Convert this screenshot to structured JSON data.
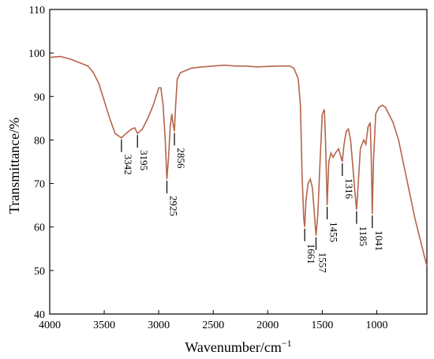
{
  "chart_data": {
    "type": "line",
    "title": "",
    "xlabel": "Wavenumber/cm",
    "xlabel_sup": "−1",
    "ylabel": "Transmittance/%",
    "xlim": [
      4000,
      540
    ],
    "ylim": [
      40,
      110
    ],
    "x_reversed": true,
    "x_ticks": [
      4000,
      3500,
      3000,
      2500,
      2000,
      1500,
      1000
    ],
    "y_ticks": [
      40,
      50,
      60,
      70,
      80,
      90,
      100,
      110
    ],
    "grid": false,
    "line_color": "#b5654a",
    "series": [
      {
        "x": [
          4000,
          3900,
          3800,
          3750,
          3700,
          3650,
          3600,
          3550,
          3500,
          3450,
          3400,
          3360,
          3342,
          3300,
          3250,
          3220,
          3195,
          3150,
          3100,
          3050,
          3000,
          2980,
          2960,
          2940,
          2925,
          2910,
          2895,
          2880,
          2870,
          2856,
          2845,
          2830,
          2800,
          2750,
          2700,
          2600,
          2500,
          2400,
          2300,
          2200,
          2100,
          2000,
          1900,
          1800,
          1760,
          1720,
          1700,
          1685,
          1670,
          1661,
          1650,
          1630,
          1610,
          1590,
          1575,
          1557,
          1540,
          1520,
          1500,
          1480,
          1470,
          1455,
          1440,
          1420,
          1400,
          1380,
          1350,
          1316,
          1300,
          1280,
          1260,
          1240,
          1220,
          1200,
          1185,
          1170,
          1150,
          1120,
          1100,
          1080,
          1060,
          1050,
          1041,
          1030,
          1010,
          980,
          950,
          920,
          900,
          850,
          800,
          750,
          700,
          650,
          600,
          560,
          540
        ],
        "y": [
          99,
          99.2,
          98.5,
          98,
          97.5,
          97,
          95.5,
          93,
          89,
          85,
          81.5,
          80.8,
          80.5,
          81.5,
          82.5,
          82.8,
          81.5,
          82.5,
          85,
          88,
          92,
          92,
          88,
          80,
          71,
          76,
          83,
          86,
          84,
          82,
          88,
          94,
          95.5,
          96,
          96.5,
          96.8,
          97,
          97.2,
          97,
          97,
          96.8,
          96.9,
          97,
          97,
          96.5,
          94,
          88,
          72,
          62,
          60,
          66,
          70,
          71,
          69,
          64,
          58,
          63,
          75,
          86,
          87,
          80,
          65,
          75,
          77,
          76,
          77,
          78,
          75,
          79,
          82,
          82.5,
          80,
          74,
          68,
          64,
          70,
          78,
          80,
          79,
          83,
          84,
          76,
          63,
          75,
          86,
          87.5,
          88,
          87.5,
          86.5,
          84,
          80,
          74,
          68,
          62,
          57,
          53,
          51
        ]
      }
    ],
    "annotations": [
      {
        "label": "3342",
        "x": 3342
      },
      {
        "label": "3195",
        "x": 3195
      },
      {
        "label": "2925",
        "x": 2925
      },
      {
        "label": "2856",
        "x": 2856
      },
      {
        "label": "1661",
        "x": 1661
      },
      {
        "label": "1557",
        "x": 1557
      },
      {
        "label": "1455",
        "x": 1455
      },
      {
        "label": "1316",
        "x": 1316
      },
      {
        "label": "1185",
        "x": 1185
      },
      {
        "label": "1041",
        "x": 1041
      }
    ]
  }
}
